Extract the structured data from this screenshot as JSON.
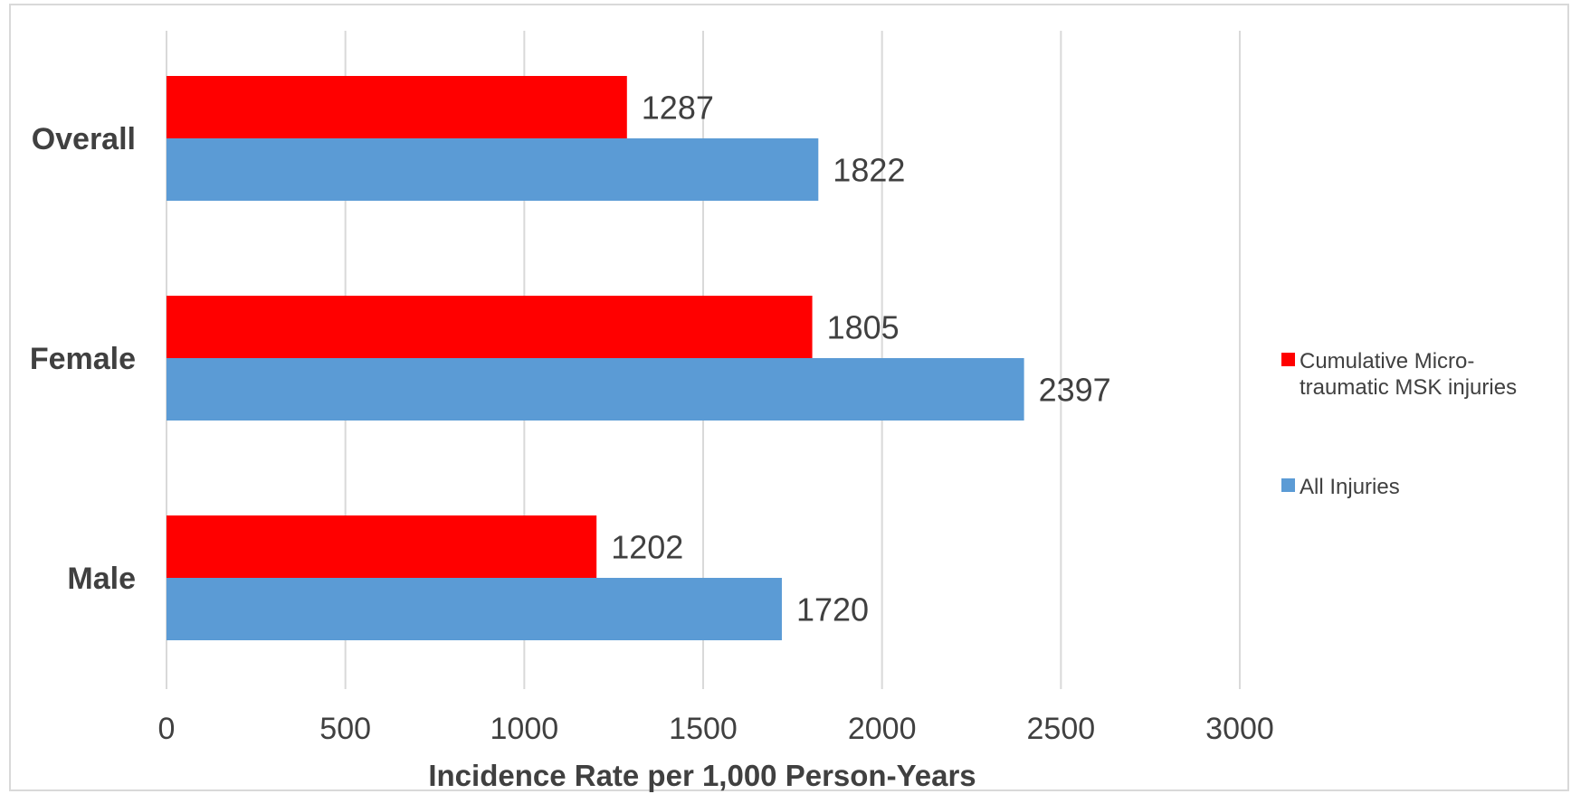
{
  "chart_data": {
    "type": "bar",
    "orientation": "horizontal",
    "categories": [
      "Overall",
      "Female",
      "Male"
    ],
    "series": [
      {
        "name": "Cumulative Micro-traumatic MSK injuries",
        "values": [
          1287,
          1805,
          1202
        ],
        "color": "#ff0000"
      },
      {
        "name": "All Injuries",
        "values": [
          1822,
          2397,
          1720
        ],
        "color": "#5b9bd5"
      }
    ],
    "data_labels": [
      [
        "1287",
        "1805",
        "1202"
      ],
      [
        "1822",
        "2397",
        "1720"
      ]
    ],
    "xlabel": "Incidence Rate per 1,000 Person-Years",
    "ylabel": "",
    "xlim": [
      0,
      3000
    ],
    "xticks": [
      0,
      500,
      1000,
      1500,
      2000,
      2500,
      3000
    ],
    "xtick_labels": [
      "0",
      "500",
      "1000",
      "1500",
      "2000",
      "2500",
      "3000"
    ],
    "grid": "vertical",
    "legend": {
      "position": "right",
      "entries": [
        {
          "lines": [
            "Cumulative Micro-",
            "traumatic MSK injuries"
          ],
          "color": "#ff0000"
        },
        {
          "lines": [
            "All Injuries"
          ],
          "color": "#5b9bd5"
        }
      ]
    }
  }
}
